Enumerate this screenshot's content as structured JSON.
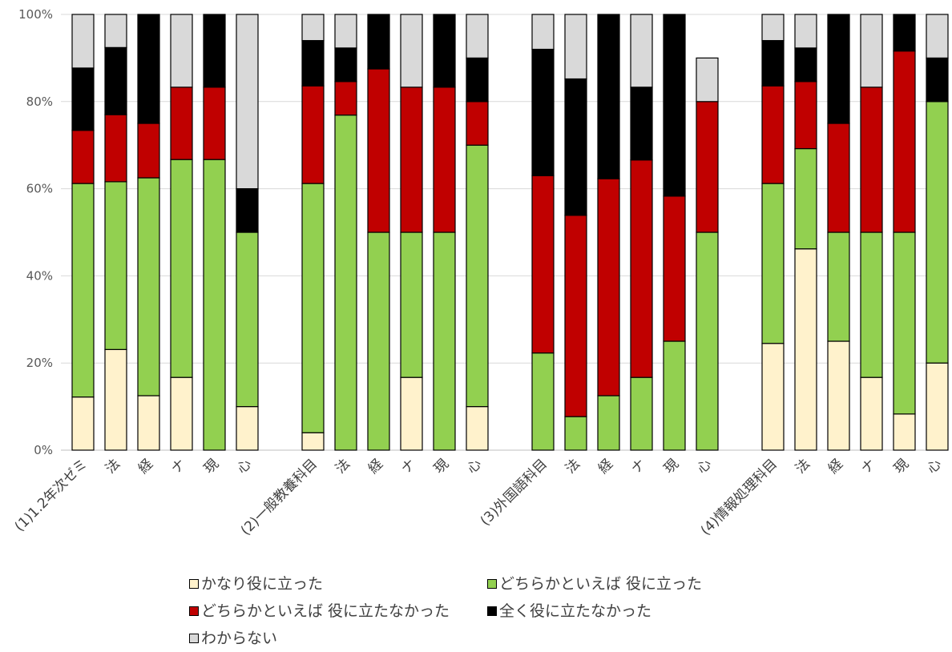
{
  "chart_data": {
    "type": "bar",
    "stacked": true,
    "percent": true,
    "ylim": [
      0,
      100
    ],
    "yticks": [
      "0%",
      "20%",
      "40%",
      "60%",
      "80%",
      "100%"
    ],
    "grid": true,
    "legend_position": "bottom",
    "groups": [
      {
        "categories": [
          "(1)1.2年次ゼミ",
          "法",
          "経",
          "ナ",
          "現",
          "心"
        ]
      },
      {
        "categories": [
          "(2)一般教養科目",
          "法",
          "経",
          "ナ",
          "現",
          "心"
        ]
      },
      {
        "categories": [
          "(3)外国語科目",
          "法",
          "経",
          "ナ",
          "現",
          "心"
        ]
      },
      {
        "categories": [
          "(4)情報処理科目",
          "法",
          "経",
          "ナ",
          "現",
          "心"
        ]
      }
    ],
    "series": [
      {
        "name": "かなり役に立った",
        "color": "#FFF2CC",
        "values": [
          12.2,
          23.1,
          12.5,
          16.7,
          0,
          10,
          4.0,
          0,
          0,
          16.7,
          0,
          10,
          0,
          0,
          0,
          0,
          0,
          0,
          24.5,
          46.2,
          25.0,
          16.7,
          8.3,
          20
        ]
      },
      {
        "name": "どちらかといえば 役に立った",
        "color": "#92D050",
        "values": [
          49.0,
          38.5,
          50.0,
          50.0,
          66.7,
          40,
          57.2,
          76.9,
          50.0,
          33.3,
          50.0,
          60,
          22.3,
          7.7,
          12.5,
          16.7,
          25.0,
          50,
          36.7,
          23.0,
          25.0,
          33.3,
          41.7,
          60
        ]
      },
      {
        "name": "どちらかといえば 役に立たなかった",
        "color": "#C00000",
        "values": [
          12.2,
          15.4,
          12.5,
          16.6,
          16.6,
          0,
          22.4,
          7.7,
          37.5,
          33.3,
          33.3,
          10,
          40.7,
          46.2,
          49.8,
          49.9,
          33.3,
          30,
          22.4,
          15.4,
          25.0,
          33.3,
          41.6,
          0
        ]
      },
      {
        "name": "全く役に立たなかった",
        "color": "#000000",
        "values": [
          14.3,
          15.4,
          25.0,
          0,
          16.7,
          10,
          10.4,
          7.7,
          12.5,
          0,
          16.7,
          10,
          29.0,
          31.3,
          37.7,
          16.7,
          41.7,
          0,
          10.4,
          7.7,
          25.0,
          0,
          8.4,
          10
        ]
      },
      {
        "name": "わからない",
        "color": "#D9D9D9",
        "values": [
          12.3,
          7.6,
          0,
          16.7,
          0,
          40,
          6.0,
          7.7,
          0,
          16.7,
          0,
          10,
          8.0,
          14.8,
          0,
          16.7,
          0,
          10,
          6.0,
          7.7,
          0,
          16.7,
          0,
          10
        ]
      }
    ]
  }
}
